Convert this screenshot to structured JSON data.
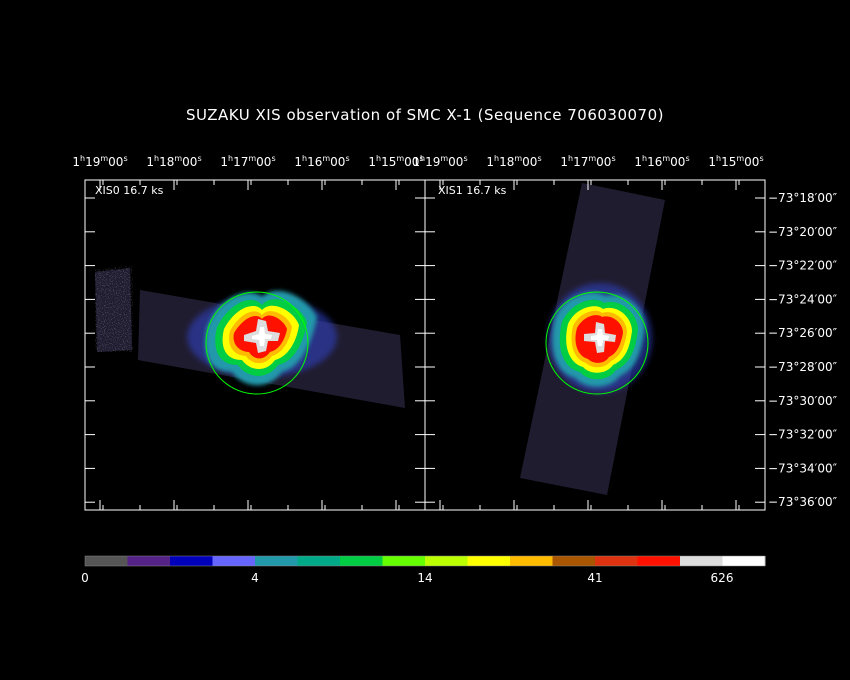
{
  "title": "SUZAKU XIS observation of SMC X-1  (Sequence 706030070)",
  "panels": [
    {
      "label": "XIS0 16.7 ks"
    },
    {
      "label": "XIS1 16.7 ks"
    }
  ],
  "ra_ticks": [
    {
      "h": "1",
      "m": "19",
      "s": "00"
    },
    {
      "h": "1",
      "m": "18",
      "s": "00"
    },
    {
      "h": "1",
      "m": "17",
      "s": "00"
    },
    {
      "h": "1",
      "m": "16",
      "s": "00"
    },
    {
      "h": "1",
      "m": "15",
      "s": "00"
    }
  ],
  "dec_ticks": [
    "−73°18′00″",
    "−73°20′00″",
    "−73°22′00″",
    "−73°24′00″",
    "−73°26′00″",
    "−73°28′00″",
    "−73°30′00″",
    "−73°32′00″",
    "−73°34′00″",
    "−73°36′00″"
  ],
  "colorbar": {
    "colors": [
      "#555555",
      "#552288",
      "#0000bb",
      "#6666ff",
      "#2299aa",
      "#00aa88",
      "#00cc44",
      "#66ff00",
      "#bbff00",
      "#ffff00",
      "#ffbb00",
      "#aa5500",
      "#dd3311",
      "#ff1100",
      "#dddddd",
      "#ffffff"
    ],
    "labels": [
      "0",
      "4",
      "14",
      "41",
      "626"
    ]
  },
  "colors": {
    "background": "#000000",
    "frame": "#ffffff",
    "region_circle": "#00ff00"
  }
}
